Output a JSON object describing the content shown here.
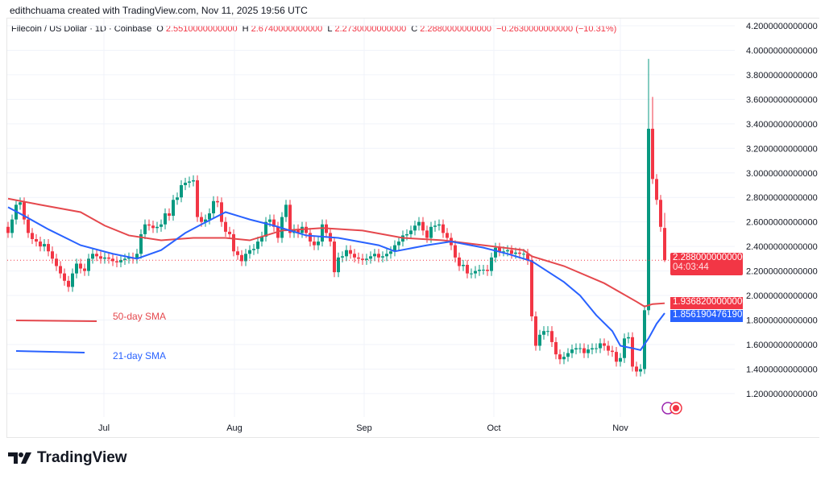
{
  "credit": "edithchuama created with TradingView.com, Nov 11, 2025 19:56 UTC",
  "header": {
    "symbol": "Filecoin / US Dollar · 1D · Coinbase",
    "o_label": "O",
    "o": "2.5510000000000",
    "h_label": "H",
    "h": "2.6740000000000",
    "l_label": "L",
    "l": "2.2730000000000",
    "c_label": "C",
    "c": "2.2880000000000",
    "change": "−0.2630000000000 (−10.31%)"
  },
  "price_labels": {
    "last": "2.2880000000000",
    "countdown": "04:03:44",
    "sma50": "1.9368200000000",
    "sma21": "1.8561904761905"
  },
  "legend": {
    "sma50": "50-day SMA",
    "sma21": "21-day SMA"
  },
  "brand": "TradingView",
  "colors": {
    "up": "#089981",
    "down": "#f23645",
    "sma50": "#e5484d",
    "sma21": "#2962ff"
  },
  "chart_data": {
    "type": "candlestick",
    "symbol": "FIL/USD",
    "interval": "1D",
    "ylim": [
      1.2,
      4.2
    ],
    "y_ticks": [
      "1.2000000000000",
      "1.4000000000000",
      "1.6000000000000",
      "1.8000000000000",
      "2.0000000000000",
      "2.2000000000000",
      "2.4000000000000",
      "2.6000000000000",
      "2.8000000000000",
      "3.0000000000000",
      "3.2000000000000",
      "3.4000000000000",
      "3.6000000000000",
      "3.8000000000000",
      "4.0000000000000",
      "4.2000000000000"
    ],
    "x_ticks": [
      "Jul",
      "Aug",
      "Sep",
      "Oct",
      "Nov"
    ],
    "grid": true,
    "close": [
      2.51,
      2.62,
      2.74,
      2.76,
      2.62,
      2.51,
      2.46,
      2.44,
      2.4,
      2.42,
      2.36,
      2.3,
      2.24,
      2.18,
      2.12,
      2.07,
      2.18,
      2.26,
      2.22,
      2.2,
      2.3,
      2.34,
      2.32,
      2.3,
      2.31,
      2.3,
      2.28,
      2.27,
      2.29,
      2.3,
      2.31,
      2.3,
      2.34,
      2.5,
      2.58,
      2.57,
      2.55,
      2.56,
      2.58,
      2.67,
      2.65,
      2.78,
      2.8,
      2.9,
      2.92,
      2.93,
      2.94,
      2.64,
      2.6,
      2.62,
      2.67,
      2.77,
      2.76,
      2.6,
      2.52,
      2.5,
      2.36,
      2.33,
      2.28,
      2.34,
      2.37,
      2.38,
      2.44,
      2.48,
      2.6,
      2.62,
      2.56,
      2.47,
      2.64,
      2.74,
      2.51,
      2.54,
      2.51,
      2.56,
      2.51,
      2.44,
      2.41,
      2.44,
      2.58,
      2.51,
      2.44,
      2.19,
      2.31,
      2.32,
      2.37,
      2.34,
      2.31,
      2.3,
      2.29,
      2.3,
      2.32,
      2.34,
      2.31,
      2.32,
      2.34,
      2.36,
      2.41,
      2.44,
      2.49,
      2.5,
      2.53,
      2.57,
      2.6,
      2.53,
      2.47,
      2.56,
      2.57,
      2.58,
      2.51,
      2.47,
      2.41,
      2.31,
      2.24,
      2.25,
      2.18,
      2.18,
      2.2,
      2.21,
      2.21,
      2.2,
      2.31,
      2.39,
      2.36,
      2.36,
      2.37,
      2.34,
      2.35,
      2.34,
      2.34,
      2.29,
      1.83,
      1.59,
      1.68,
      1.71,
      1.71,
      1.62,
      1.52,
      1.48,
      1.5,
      1.53,
      1.56,
      1.57,
      1.57,
      1.53,
      1.56,
      1.57,
      1.57,
      1.61,
      1.59,
      1.55,
      1.54,
      1.46,
      1.49,
      1.65,
      1.66,
      1.42,
      1.38,
      1.4,
      1.88,
      3.36,
      2.95,
      2.78,
      2.56,
      2.288
    ],
    "notable_highs": [
      [
        159,
        3.93
      ],
      [
        160,
        3.62
      ]
    ],
    "last_candle": {
      "open": 2.551,
      "high": 2.674,
      "low": 2.273,
      "close": 2.288
    },
    "series": [
      {
        "name": "50-day SMA",
        "points": [
          [
            0,
            2.79
          ],
          [
            8,
            2.74
          ],
          [
            18,
            2.68
          ],
          [
            24,
            2.57
          ],
          [
            30,
            2.49
          ],
          [
            38,
            2.45
          ],
          [
            46,
            2.47
          ],
          [
            54,
            2.47
          ],
          [
            60,
            2.45
          ],
          [
            68,
            2.53
          ],
          [
            78,
            2.55
          ],
          [
            88,
            2.53
          ],
          [
            98,
            2.47
          ],
          [
            108,
            2.45
          ],
          [
            118,
            2.41
          ],
          [
            128,
            2.37
          ],
          [
            130,
            2.32
          ],
          [
            138,
            2.24
          ],
          [
            148,
            2.1
          ],
          [
            156,
            1.95
          ],
          [
            158,
            1.91
          ],
          [
            160,
            1.93
          ],
          [
            163,
            1.9368
          ]
        ]
      },
      {
        "name": "21-day SMA",
        "points": [
          [
            0,
            2.72
          ],
          [
            4,
            2.65
          ],
          [
            10,
            2.54
          ],
          [
            18,
            2.41
          ],
          [
            26,
            2.34
          ],
          [
            32,
            2.3
          ],
          [
            38,
            2.37
          ],
          [
            44,
            2.51
          ],
          [
            48,
            2.58
          ],
          [
            54,
            2.68
          ],
          [
            58,
            2.64
          ],
          [
            60,
            2.62
          ],
          [
            66,
            2.57
          ],
          [
            74,
            2.49
          ],
          [
            82,
            2.47
          ],
          [
            92,
            2.41
          ],
          [
            96,
            2.36
          ],
          [
            104,
            2.41
          ],
          [
            110,
            2.44
          ],
          [
            118,
            2.39
          ],
          [
            124,
            2.34
          ],
          [
            130,
            2.28
          ],
          [
            138,
            2.11
          ],
          [
            142,
            2.0
          ],
          [
            146,
            1.84
          ],
          [
            150,
            1.71
          ],
          [
            152,
            1.59
          ],
          [
            155,
            1.57
          ],
          [
            157,
            1.555
          ],
          [
            159,
            1.65
          ],
          [
            161,
            1.77
          ],
          [
            163,
            1.8562
          ]
        ]
      }
    ]
  }
}
